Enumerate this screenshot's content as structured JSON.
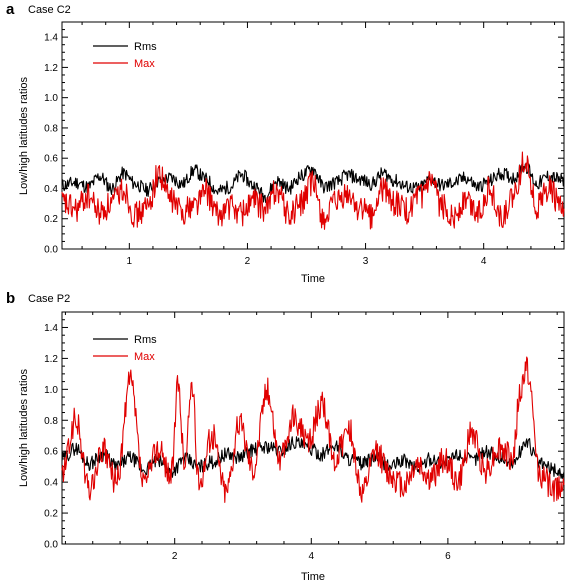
{
  "chart_data": [
    {
      "type": "line",
      "panel_letter": "a",
      "title": "Case C2",
      "xlabel": "Time",
      "ylabel": "Low/high latitudes ratios",
      "xlim": [
        0.43,
        4.68
      ],
      "ylim": [
        0.0,
        1.5
      ],
      "xticks": [
        1,
        2,
        3,
        4
      ],
      "yticks": [
        0.0,
        0.2,
        0.4,
        0.6,
        0.8,
        1.0,
        1.2,
        1.4
      ],
      "legend_position": "top-left",
      "series": [
        {
          "name": "Rms",
          "color": "#000000",
          "x": [
            0.43,
            0.55,
            0.65,
            0.75,
            0.85,
            0.95,
            1.05,
            1.15,
            1.25,
            1.35,
            1.45,
            1.55,
            1.65,
            1.75,
            1.85,
            1.95,
            2.05,
            2.15,
            2.25,
            2.35,
            2.45,
            2.55,
            2.65,
            2.75,
            2.85,
            2.95,
            3.05,
            3.15,
            3.25,
            3.35,
            3.45,
            3.55,
            3.65,
            3.75,
            3.85,
            3.95,
            4.05,
            4.15,
            4.25,
            4.35,
            4.45,
            4.55,
            4.68
          ],
          "values": [
            0.42,
            0.44,
            0.41,
            0.48,
            0.4,
            0.5,
            0.43,
            0.39,
            0.45,
            0.47,
            0.43,
            0.52,
            0.46,
            0.38,
            0.41,
            0.49,
            0.42,
            0.35,
            0.45,
            0.4,
            0.48,
            0.53,
            0.41,
            0.44,
            0.49,
            0.46,
            0.43,
            0.5,
            0.45,
            0.41,
            0.4,
            0.46,
            0.42,
            0.44,
            0.47,
            0.41,
            0.45,
            0.5,
            0.47,
            0.55,
            0.43,
            0.48,
            0.45
          ]
        },
        {
          "name": "Max",
          "color": "#e00000",
          "x": [
            0.43,
            0.55,
            0.65,
            0.75,
            0.85,
            0.95,
            1.05,
            1.15,
            1.25,
            1.35,
            1.45,
            1.55,
            1.65,
            1.75,
            1.85,
            1.95,
            2.05,
            2.15,
            2.25,
            2.35,
            2.45,
            2.55,
            2.65,
            2.75,
            2.85,
            2.95,
            3.05,
            3.15,
            3.25,
            3.35,
            3.45,
            3.55,
            3.65,
            3.75,
            3.85,
            3.95,
            4.05,
            4.15,
            4.25,
            4.35,
            4.45,
            4.55,
            4.68
          ],
          "values": [
            0.3,
            0.26,
            0.35,
            0.24,
            0.3,
            0.4,
            0.22,
            0.27,
            0.5,
            0.33,
            0.25,
            0.3,
            0.38,
            0.22,
            0.28,
            0.24,
            0.32,
            0.26,
            0.4,
            0.22,
            0.3,
            0.43,
            0.2,
            0.3,
            0.35,
            0.27,
            0.22,
            0.4,
            0.3,
            0.25,
            0.33,
            0.43,
            0.28,
            0.22,
            0.32,
            0.25,
            0.4,
            0.2,
            0.33,
            0.6,
            0.28,
            0.4,
            0.25
          ]
        }
      ]
    },
    {
      "type": "line",
      "panel_letter": "b",
      "title": "Case P2",
      "xlabel": "Time",
      "ylabel": "Low/high latitudes ratios",
      "xlim": [
        0.35,
        7.7
      ],
      "ylim": [
        0.0,
        1.5
      ],
      "xticks": [
        2,
        4,
        6
      ],
      "yticks": [
        0.0,
        0.2,
        0.4,
        0.6,
        0.8,
        1.0,
        1.2,
        1.4
      ],
      "legend_position": "top-left",
      "series": [
        {
          "name": "Rms",
          "color": "#000000",
          "x": [
            0.35,
            0.55,
            0.75,
            0.95,
            1.15,
            1.35,
            1.55,
            1.75,
            1.95,
            2.15,
            2.35,
            2.55,
            2.75,
            2.95,
            3.15,
            3.35,
            3.55,
            3.75,
            3.95,
            4.15,
            4.35,
            4.55,
            4.75,
            4.95,
            5.15,
            5.35,
            5.55,
            5.75,
            5.95,
            6.15,
            6.35,
            6.55,
            6.75,
            6.95,
            7.15,
            7.35,
            7.55,
            7.7
          ],
          "values": [
            0.55,
            0.62,
            0.52,
            0.58,
            0.5,
            0.56,
            0.48,
            0.54,
            0.47,
            0.55,
            0.5,
            0.53,
            0.58,
            0.56,
            0.61,
            0.63,
            0.6,
            0.66,
            0.62,
            0.58,
            0.64,
            0.55,
            0.52,
            0.56,
            0.5,
            0.54,
            0.49,
            0.55,
            0.52,
            0.58,
            0.54,
            0.6,
            0.56,
            0.52,
            0.66,
            0.52,
            0.48,
            0.45
          ]
        },
        {
          "name": "Max",
          "color": "#e00000",
          "x": [
            0.35,
            0.55,
            0.75,
            0.95,
            1.15,
            1.35,
            1.55,
            1.75,
            1.95,
            2.05,
            2.15,
            2.25,
            2.35,
            2.55,
            2.75,
            2.95,
            3.15,
            3.35,
            3.55,
            3.75,
            3.95,
            4.15,
            4.35,
            4.55,
            4.75,
            4.95,
            5.15,
            5.35,
            5.55,
            5.75,
            5.95,
            6.15,
            6.35,
            6.55,
            6.75,
            6.95,
            7.05,
            7.15,
            7.35,
            7.55,
            7.7
          ],
          "values": [
            0.45,
            0.8,
            0.35,
            0.6,
            0.4,
            1.05,
            0.38,
            0.62,
            0.45,
            1.02,
            0.5,
            1.05,
            0.4,
            0.7,
            0.35,
            0.78,
            0.5,
            1.0,
            0.55,
            0.82,
            0.65,
            0.9,
            0.55,
            0.75,
            0.32,
            0.6,
            0.45,
            0.38,
            0.52,
            0.42,
            0.55,
            0.4,
            0.72,
            0.48,
            0.62,
            0.55,
            0.95,
            1.15,
            0.45,
            0.35,
            0.4
          ]
        }
      ]
    }
  ]
}
